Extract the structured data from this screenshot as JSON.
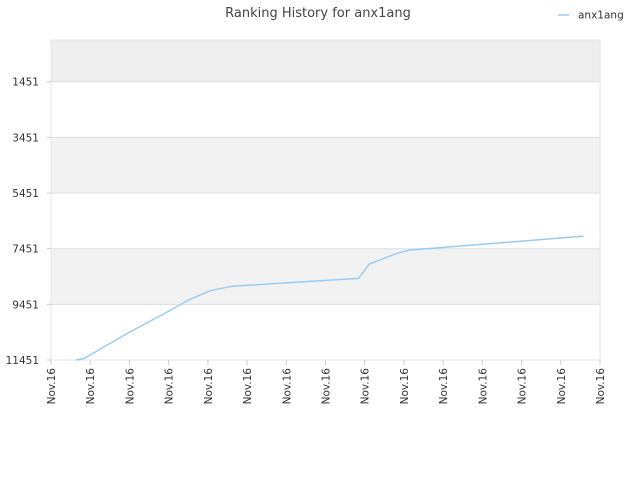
{
  "chart_data": {
    "type": "line",
    "title": "Ranking History for anx1ang",
    "xlabel": "",
    "ylabel": "",
    "y_axis_inverted": true,
    "ylim": [
      -49,
      11451
    ],
    "y_ticks": [
      1451,
      3451,
      5451,
      7451,
      9451,
      11451
    ],
    "x_tick_labels": [
      "Nov.16",
      "Nov.16",
      "Nov.16",
      "Nov.16",
      "Nov.16",
      "Nov.16",
      "Nov.16",
      "Nov.16",
      "Nov.16",
      "Nov.16",
      "Nov.16",
      "Nov.16",
      "Nov.16",
      "Nov.16",
      "Nov.16"
    ],
    "grid": true,
    "legend_position": "top-right",
    "series": [
      {
        "name": "anx1ang",
        "color": "#99ccf4",
        "x": [
          0.045,
          0.06,
          0.14,
          0.2,
          0.25,
          0.29,
          0.33,
          0.56,
          0.58,
          0.63,
          0.65,
          0.97
        ],
        "values": [
          11451,
          11400,
          10480,
          9850,
          9300,
          8960,
          8800,
          8520,
          8000,
          7620,
          7510,
          7000
        ]
      }
    ],
    "style": {
      "band_color": "#f2f2f2",
      "top_band_color": "#eeeeee",
      "grid_color": "#dddddd",
      "axis_color": "#cccccc",
      "text_color": "#333333",
      "title_color": "#444444"
    }
  }
}
